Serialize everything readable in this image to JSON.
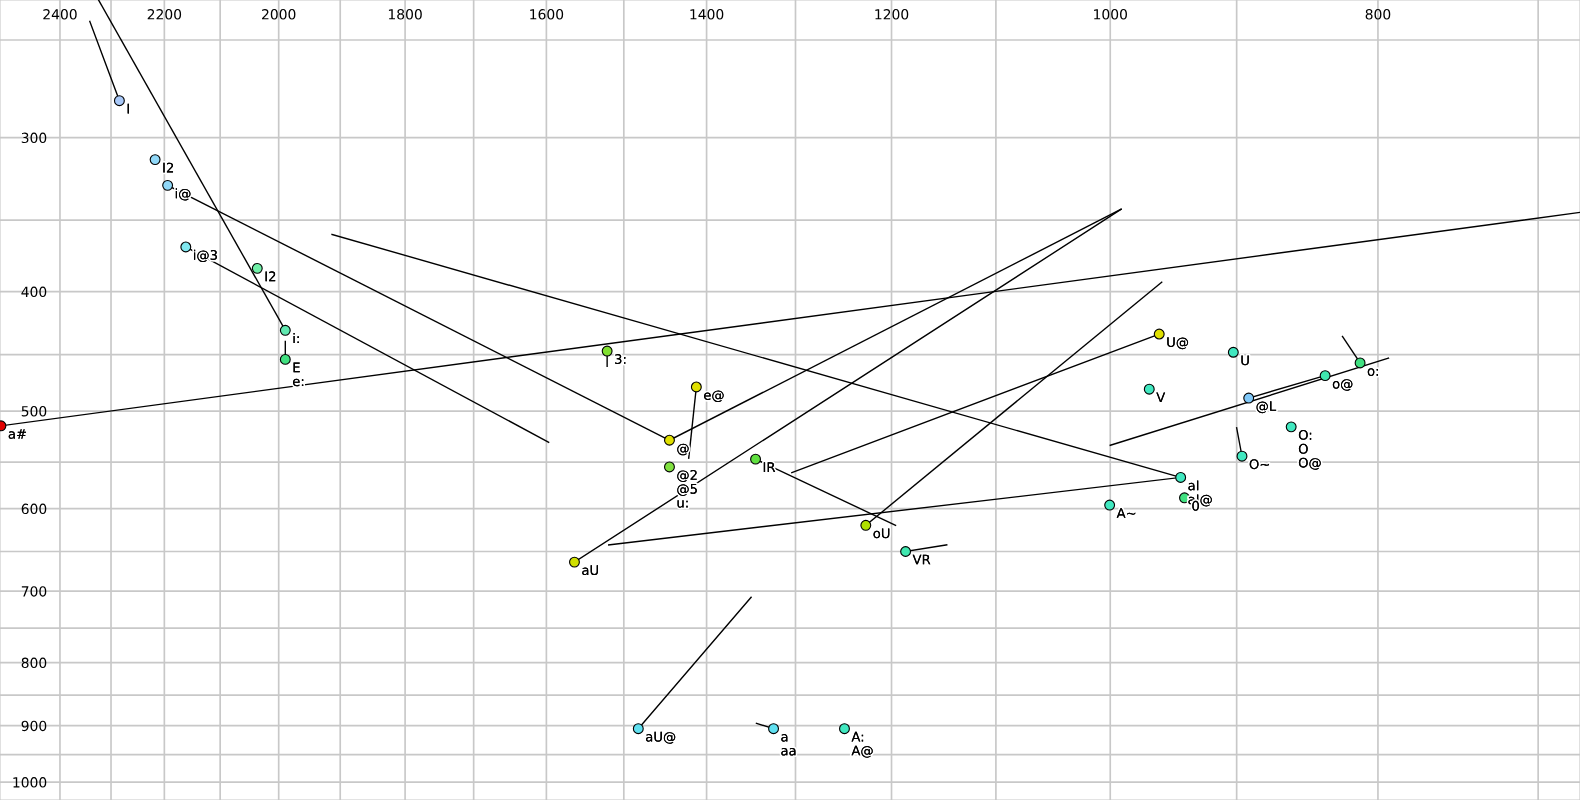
{
  "chart_data": {
    "type": "scatter",
    "log": "xy",
    "grid": true,
    "xlim": [
      2523,
      676
    ],
    "ylim": [
      1034,
      232
    ],
    "xticks": [
      2400,
      {
        "value": 2300,
        "label": null
      },
      2200,
      {
        "value": 2100,
        "label": null
      },
      2000,
      {
        "value": 1900,
        "label": null
      },
      1800,
      {
        "value": 1700,
        "label": null
      },
      1600,
      {
        "value": 1500,
        "label": null
      },
      1400,
      {
        "value": 1300,
        "label": null
      },
      1200,
      {
        "value": 1100,
        "label": null
      },
      1000,
      {
        "value": 900,
        "label": null
      },
      800,
      {
        "value": 700,
        "label": null
      }
    ],
    "yticks": [
      {
        "value": 250,
        "label": null
      },
      300,
      {
        "value": 350,
        "label": null
      },
      400,
      {
        "value": 450,
        "label": null
      },
      500,
      {
        "value": 550,
        "label": null
      },
      600,
      {
        "value": 650,
        "label": null
      },
      700,
      {
        "value": 750,
        "label": null
      },
      800,
      {
        "value": 850,
        "label": null
      },
      900,
      {
        "value": 950,
        "label": null
      },
      1000
    ],
    "series": [
      {
        "type": "line",
        "color": "#000000",
        "marker": "none",
        "x": [
          2341,
          2284
        ],
        "values": [
          241.5,
          280
        ]
      },
      {
        "type": "line",
        "color": "#000000",
        "marker": "none",
        "x": [
          2324,
          1989
        ],
        "values": [
          232,
          430
        ]
      },
      {
        "type": "line",
        "color": "#000000",
        "marker": "none",
        "x": [
          2194,
          1444
        ],
        "values": [
          328,
          528
        ]
      },
      {
        "type": "line",
        "color": "#000000",
        "marker": "none",
        "x": [
          2161,
          1597
        ],
        "values": [
          368,
          530
        ]
      },
      {
        "type": "line",
        "color": "#000000",
        "marker": "none",
        "x": [
          1989,
          1989
        ],
        "values": [
          439,
          454
        ]
      },
      {
        "type": "line",
        "color": "#000000",
        "marker": "none",
        "x": [
          2521,
          676
        ],
        "values": [
          514,
          345
        ]
      },
      {
        "type": "line",
        "color": "#000000",
        "marker": "none",
        "x": [
          1913,
          943
        ],
        "values": [
          359.5,
          566
        ]
      },
      {
        "type": "line",
        "color": "#000000",
        "marker": "none",
        "x": [
          1444,
          991
        ],
        "values": [
          528,
          343
        ]
      },
      {
        "type": "line",
        "color": "#000000",
        "marker": "none",
        "x": [
          1563,
          991
        ],
        "values": [
          663,
          343
        ]
      },
      {
        "type": "line",
        "color": "#000000",
        "marker": "none",
        "x": [
          1226,
          958
        ],
        "values": [
          619,
          393
        ]
      },
      {
        "type": "line",
        "color": "#000000",
        "marker": "none",
        "x": [
          960,
          1304
        ],
        "values": [
          433,
          561
        ]
      },
      {
        "type": "line",
        "color": "#000000",
        "marker": "none",
        "x": [
          1344,
          1196
        ],
        "values": [
          547,
          619
        ]
      },
      {
        "type": "line",
        "color": "#000000",
        "marker": "none",
        "x": [
          943,
          1519
        ],
        "values": [
          566,
          642
        ]
      },
      {
        "type": "line",
        "color": "#000000",
        "marker": "none",
        "x": [
          1412,
          1421
        ],
        "values": [
          478,
          546
        ]
      },
      {
        "type": "line",
        "color": "#000000",
        "marker": "none",
        "x": [
          1186,
          1146
        ],
        "values": [
          650,
          642
        ]
      },
      {
        "type": "line",
        "color": "#000000",
        "marker": "none",
        "x": [
          1482,
          1349
        ],
        "values": [
          905,
          708
        ]
      },
      {
        "type": "line",
        "color": "#000000",
        "marker": "none",
        "x": [
          1324,
          1343
        ],
        "values": [
          905,
          896
        ]
      },
      {
        "type": "line",
        "color": "#000000",
        "marker": "none",
        "x": [
          812,
          824
        ],
        "values": [
          457,
          435
        ]
      },
      {
        "type": "line",
        "color": "#000000",
        "marker": "none",
        "x": [
          793,
          1000
        ],
        "values": [
          453,
          533
        ]
      },
      {
        "type": "line",
        "color": "#000000",
        "marker": "none",
        "x": [
          891,
          836
        ],
        "values": [
          488,
          468
        ]
      },
      {
        "type": "line",
        "color": "#000000",
        "marker": "none",
        "x": [
          896,
          900
        ],
        "values": [
          544,
          516
        ]
      },
      {
        "type": "line",
        "color": "#000000",
        "marker": "none",
        "x": [
          1521,
          1521
        ],
        "values": [
          447,
          460
        ]
      },
      {
        "marker": "circle",
        "x": [
          2284,
          2217,
          2194,
          2161,
          2036,
          1989,
          1989,
          2521,
          1521,
          1412,
          1444,
          1444,
          1344,
          1563,
          1226,
          1186,
          1482,
          1324,
          1248,
          960,
          902.5,
          812,
          836,
          968,
          891,
          860,
          896,
          943,
          940,
          1000.5
        ],
        "values": [
          280,
          312.6,
          328,
          368,
          383,
          430,
          454,
          514,
          447,
          478,
          528,
          555,
          547,
          663,
          619,
          650,
          905,
          905,
          905,
          433,
          448,
          457,
          468,
          480,
          488,
          515,
          544,
          566,
          588,
          596
        ],
        "colors": [
          "#a8c8f8",
          "#90d8f8",
          "#90d8f8",
          "#80e8f0",
          "#70f0a8",
          "#60e8b0",
          "#40e080",
          "#e00000",
          "#80e030",
          "#e0e000",
          "#e0e000",
          "#80e040",
          "#60e040",
          "#d0e000",
          "#b0e000",
          "#40e8b0",
          "#60e0f0",
          "#60e0f0",
          "#40e8c0",
          "#e0e000",
          "#40e8c0",
          "#40e080",
          "#40e8b0",
          "#40e8c0",
          "#80c8f8",
          "#40e8c0",
          "#40e8c0",
          "#40e8c0",
          "#40e080",
          "#40e8c0"
        ]
      }
    ],
    "annotations": [
      {
        "text": "I",
        "x": 2284,
        "y": 280
      },
      {
        "text": "I2",
        "x": 2217,
        "y": 312.6
      },
      {
        "text": "i@",
        "x": 2194,
        "y": 328
      },
      {
        "text": "i@3",
        "x": 2161,
        "y": 368
      },
      {
        "text": "I2",
        "x": 2036,
        "y": 383
      },
      {
        "text": "i:",
        "x": 1989,
        "y": 430
      },
      {
        "text": "E",
        "x": 1989,
        "y": 454
      },
      {
        "text": "e:",
        "x": 1989,
        "y": 454
      },
      {
        "text": "a#",
        "x": 2521,
        "y": 514
      },
      {
        "text": "3:",
        "x": 1521,
        "y": 447
      },
      {
        "text": "e@",
        "x": 1412,
        "y": 478
      },
      {
        "text": "@",
        "x": 1444,
        "y": 528
      },
      {
        "text": "@2",
        "x": 1444,
        "y": 555
      },
      {
        "text": "@5",
        "x": 1444,
        "y": 555
      },
      {
        "text": "u:",
        "x": 1444,
        "y": 555
      },
      {
        "text": "IR",
        "x": 1344,
        "y": 547
      },
      {
        "text": "aU",
        "x": 1563,
        "y": 663
      },
      {
        "text": "oU",
        "x": 1226,
        "y": 619
      },
      {
        "text": "VR",
        "x": 1186,
        "y": 650
      },
      {
        "text": "aU@",
        "x": 1482,
        "y": 905
      },
      {
        "text": "a",
        "x": 1324,
        "y": 905
      },
      {
        "text": "aa",
        "x": 1324,
        "y": 905
      },
      {
        "text": "A:",
        "x": 1248,
        "y": 905
      },
      {
        "text": "A@",
        "x": 1248,
        "y": 905
      },
      {
        "text": "U@",
        "x": 960,
        "y": 433
      },
      {
        "text": "U",
        "x": 902.5,
        "y": 448
      },
      {
        "text": "o:",
        "x": 812,
        "y": 457
      },
      {
        "text": "o@",
        "x": 836,
        "y": 468
      },
      {
        "text": "V",
        "x": 968,
        "y": 480
      },
      {
        "text": "@L",
        "x": 891,
        "y": 488
      },
      {
        "text": "O:",
        "x": 860,
        "y": 515
      },
      {
        "text": "O",
        "x": 860,
        "y": 515
      },
      {
        "text": "O@",
        "x": 860,
        "y": 515
      },
      {
        "text": "O~",
        "x": 896,
        "y": 544
      },
      {
        "text": "aI",
        "x": 943,
        "y": 566
      },
      {
        "text": "aI@",
        "x": 943,
        "y": 566
      },
      {
        "text": "0",
        "x": 940,
        "y": 588
      },
      {
        "text": "A~",
        "x": 1000.5,
        "y": 596
      }
    ]
  }
}
